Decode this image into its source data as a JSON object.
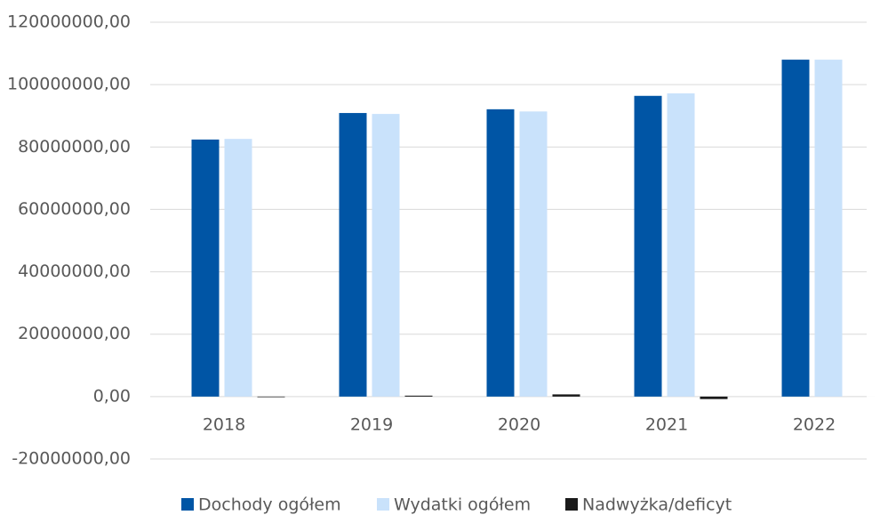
{
  "chart_data": {
    "type": "bar",
    "categories": [
      "2018",
      "2019",
      "2020",
      "2021",
      "2022"
    ],
    "series": [
      {
        "name": "Dochody ogółem",
        "color": "#0055a5",
        "values": [
          82400000,
          90900000,
          92100000,
          96400000,
          108000000
        ]
      },
      {
        "name": "Wydatki ogółem",
        "color": "#c9e2fb",
        "values": [
          82600000,
          90600000,
          91400000,
          97200000,
          108000000
        ]
      },
      {
        "name": "Nadwyżka/deficyt",
        "color": "#1a1a1a",
        "values": [
          -200000,
          300000,
          700000,
          -800000,
          0
        ]
      }
    ],
    "ylim": [
      -20000000,
      120000000
    ],
    "yticks": [
      {
        "value": -20000000,
        "label": "-20000000,00"
      },
      {
        "value": 0,
        "label": "0,00"
      },
      {
        "value": 20000000,
        "label": "20000000,00"
      },
      {
        "value": 40000000,
        "label": "40000000,00"
      },
      {
        "value": 60000000,
        "label": "60000000,00"
      },
      {
        "value": 80000000,
        "label": "80000000,00"
      },
      {
        "value": 100000000,
        "label": "100000000,00"
      },
      {
        "value": 120000000,
        "label": "120000000,00"
      }
    ],
    "grid": true,
    "legend": "bottom"
  }
}
